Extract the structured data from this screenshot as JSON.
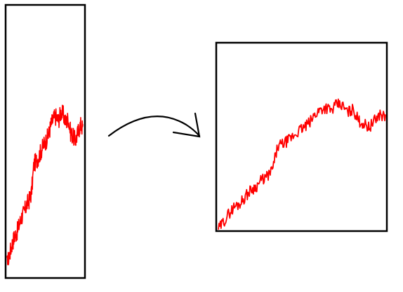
{
  "diagram": {
    "description_type": "stretch transform",
    "colors": {
      "series": "#ff0000",
      "frame": "#000000",
      "arrow": "#000000",
      "background": "#ffffff"
    },
    "arrow_icon": "curved-arrow-right-icon"
  },
  "chart_data": [
    {
      "type": "line",
      "series": [
        {
          "values": [
            0.0,
            0.05,
            0.1,
            0.14,
            0.16,
            0.2,
            0.24,
            0.26,
            0.3,
            0.32,
            0.36,
            0.5,
            0.52,
            0.54,
            0.57,
            0.6,
            0.62,
            0.65,
            0.7,
            0.73,
            0.74,
            0.72,
            0.76,
            0.75,
            0.71,
            0.73,
            0.66,
            0.64,
            0.62,
            0.66,
            0.7,
            0.68
          ]
        }
      ],
      "grid": false,
      "axes_visible": false
    },
    {
      "type": "line",
      "series": [
        {
          "values": [
            0.0,
            0.05,
            0.1,
            0.14,
            0.16,
            0.2,
            0.24,
            0.26,
            0.3,
            0.32,
            0.36,
            0.5,
            0.52,
            0.54,
            0.57,
            0.6,
            0.62,
            0.65,
            0.7,
            0.73,
            0.74,
            0.72,
            0.76,
            0.75,
            0.71,
            0.73,
            0.66,
            0.64,
            0.62,
            0.66,
            0.7,
            0.68
          ]
        }
      ],
      "grid": false,
      "axes_visible": false
    }
  ]
}
